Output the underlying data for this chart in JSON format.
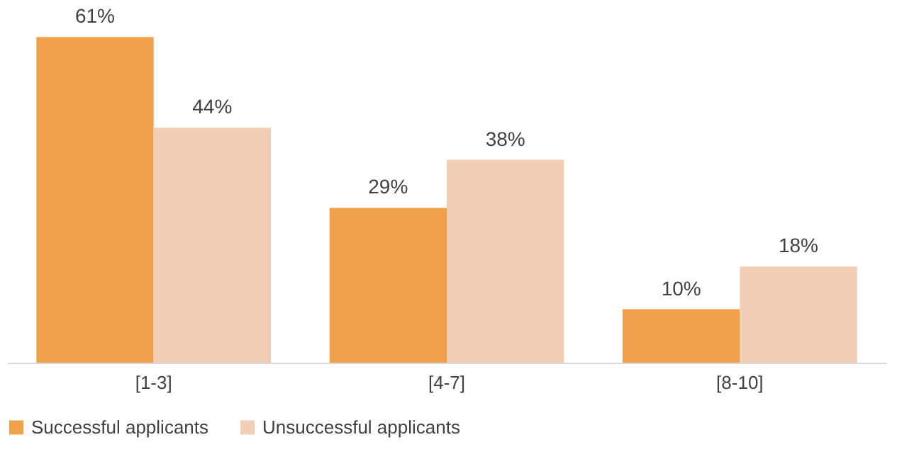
{
  "chart_data": {
    "type": "bar",
    "categories": [
      "[1-3]",
      "[4-7]",
      "[8-10]"
    ],
    "series": [
      {
        "name": "Successful applicants",
        "color": "#f0a04b",
        "values": [
          61,
          29,
          10
        ],
        "value_labels": [
          "61%",
          "29%",
          "10%"
        ]
      },
      {
        "name": "Unsuccessful applicants",
        "color": "#f2cfb4",
        "values": [
          44,
          38,
          18
        ],
        "value_labels": [
          "44%",
          "38%",
          "18%"
        ]
      }
    ],
    "tick_labels": "x",
    "grid": false,
    "legend": "bottom"
  }
}
